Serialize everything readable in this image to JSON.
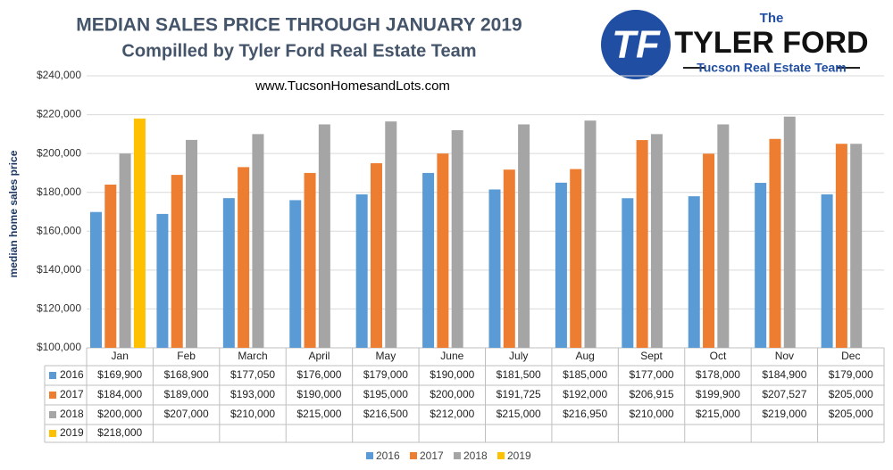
{
  "chart_data": {
    "type": "bar",
    "title": "MEDIAN SALES PRICE THROUGH JANUARY 2019",
    "subtitle": "Compilled by Tyler Ford Real Estate Team",
    "annotation": "www.TucsonHomesandLots.com",
    "y_label": "median home sales price",
    "categories": [
      "Jan",
      "Feb",
      "March",
      "April",
      "May",
      "June",
      "July",
      "Aug",
      "Sept",
      "Oct",
      "Nov",
      "Dec"
    ],
    "series": [
      {
        "name": "2016",
        "color": "#5b9bd5",
        "values": [
          169900,
          168900,
          177050,
          176000,
          179000,
          190000,
          181500,
          185000,
          177000,
          178000,
          184900,
          179000
        ],
        "value_labels": [
          "$169,900",
          "$168,900",
          "$177,050",
          "$176,000",
          "$179,000",
          "$190,000",
          "$181,500",
          "$185,000",
          "$177,000",
          "$178,000",
          "$184,900",
          "$179,000"
        ]
      },
      {
        "name": "2017",
        "color": "#ed7d31",
        "values": [
          184000,
          189000,
          193000,
          190000,
          195000,
          200000,
          191725,
          192000,
          206915,
          199900,
          207527,
          205000
        ],
        "value_labels": [
          "$184,000",
          "$189,000",
          "$193,000",
          "$190,000",
          "$195,000",
          "$200,000",
          "$191,725",
          "$192,000",
          "$206,915",
          "$199,900",
          "$207,527",
          "$205,000"
        ]
      },
      {
        "name": "2018",
        "color": "#a5a5a5",
        "values": [
          200000,
          207000,
          210000,
          215000,
          216500,
          212000,
          215000,
          216950,
          210000,
          215000,
          219000,
          205000
        ],
        "value_labels": [
          "$200,000",
          "$207,000",
          "$210,000",
          "$215,000",
          "$216,500",
          "$212,000",
          "$215,000",
          "$216,950",
          "$210,000",
          "$215,000",
          "$219,000",
          "$205,000"
        ]
      },
      {
        "name": "2019",
        "color": "#ffc000",
        "values": [
          218000,
          null,
          null,
          null,
          null,
          null,
          null,
          null,
          null,
          null,
          null,
          null
        ],
        "value_labels": [
          "$218,000",
          null,
          null,
          null,
          null,
          null,
          null,
          null,
          null,
          null,
          null,
          null
        ]
      }
    ],
    "ylim": [
      100000,
      240000
    ],
    "yticks": [
      {
        "value": 100000,
        "label": "$100,000"
      },
      {
        "value": 120000,
        "label": "$120,000"
      },
      {
        "value": 140000,
        "label": "$140,000"
      },
      {
        "value": 160000,
        "label": "$160,000"
      },
      {
        "value": 180000,
        "label": "$180,000"
      },
      {
        "value": 200000,
        "label": "$200,000"
      },
      {
        "value": 220000,
        "label": "$220,000"
      },
      {
        "value": 240000,
        "label": "$240,000"
      }
    ],
    "grid": true,
    "legend": "bottom"
  },
  "logo": {
    "initials": "TF",
    "the": "The",
    "name": "TYLER FORD",
    "tagline": "Tucson Real Estate Team"
  }
}
